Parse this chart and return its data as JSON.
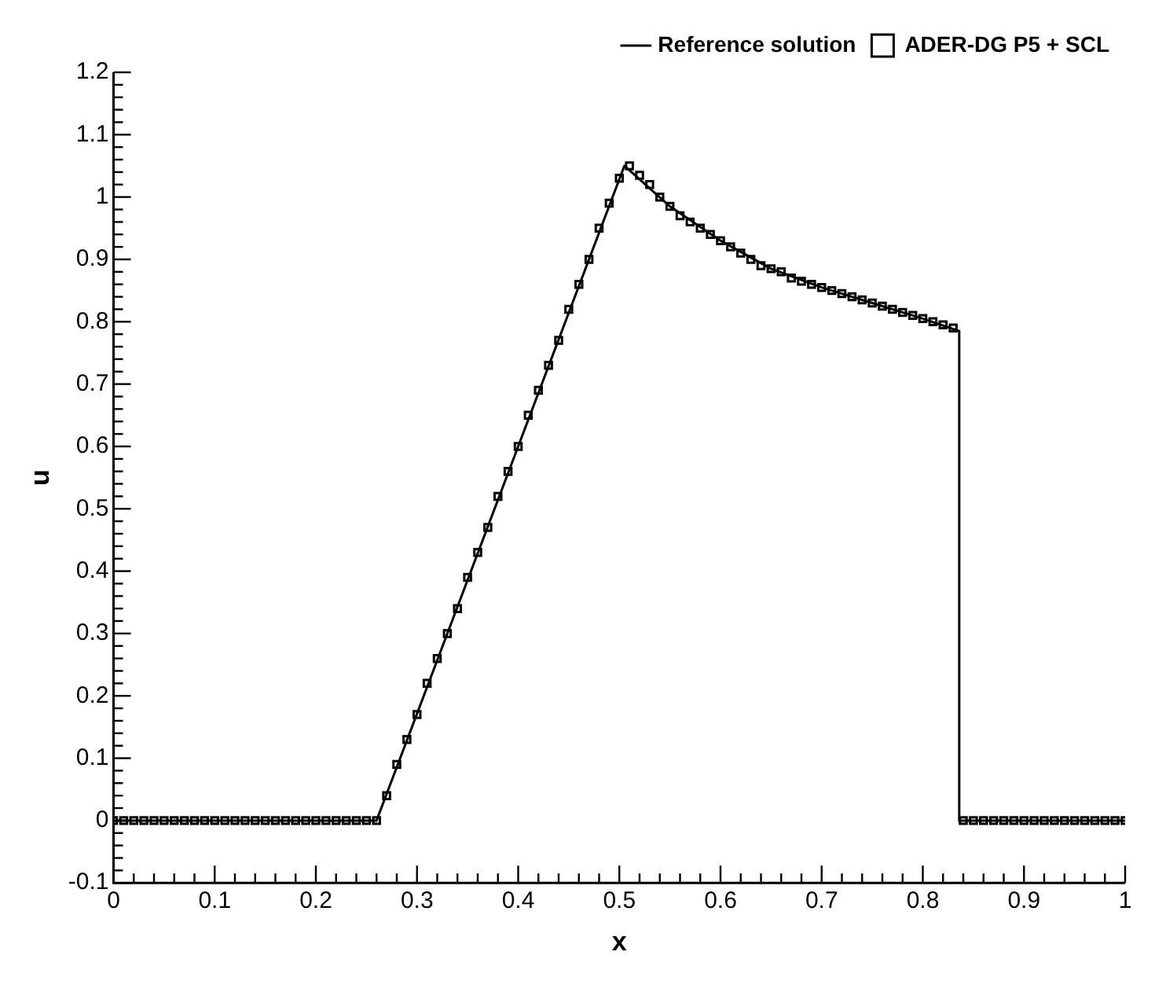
{
  "chart_data": {
    "type": "line",
    "xlabel": "x",
    "ylabel": "u",
    "xlim": [
      0,
      1
    ],
    "ylim": [
      -0.1,
      1.2
    ],
    "xticks": [
      0,
      {
        "value": 0.02,
        "label": null
      },
      {
        "value": 0.04,
        "label": null
      },
      {
        "value": 0.06,
        "label": null
      },
      {
        "value": 0.08,
        "label": null
      },
      0.1,
      {
        "value": 0.12,
        "label": null
      },
      {
        "value": 0.14,
        "label": null
      },
      {
        "value": 0.16,
        "label": null
      },
      {
        "value": 0.18,
        "label": null
      },
      0.2,
      {
        "value": 0.22,
        "label": null
      },
      {
        "value": 0.24,
        "label": null
      },
      {
        "value": 0.26,
        "label": null
      },
      {
        "value": 0.28,
        "label": null
      },
      0.3,
      {
        "value": 0.32,
        "label": null
      },
      {
        "value": 0.34,
        "label": null
      },
      {
        "value": 0.36,
        "label": null
      },
      {
        "value": 0.38,
        "label": null
      },
      0.4,
      {
        "value": 0.42,
        "label": null
      },
      {
        "value": 0.44,
        "label": null
      },
      {
        "value": 0.46,
        "label": null
      },
      {
        "value": 0.48,
        "label": null
      },
      0.5,
      {
        "value": 0.52,
        "label": null
      },
      {
        "value": 0.54,
        "label": null
      },
      {
        "value": 0.56,
        "label": null
      },
      {
        "value": 0.58,
        "label": null
      },
      0.6,
      {
        "value": 0.62,
        "label": null
      },
      {
        "value": 0.64,
        "label": null
      },
      {
        "value": 0.66,
        "label": null
      },
      {
        "value": 0.68,
        "label": null
      },
      0.7,
      {
        "value": 0.72,
        "label": null
      },
      {
        "value": 0.74,
        "label": null
      },
      {
        "value": 0.76,
        "label": null
      },
      {
        "value": 0.78,
        "label": null
      },
      0.8,
      {
        "value": 0.82,
        "label": null
      },
      {
        "value": 0.84,
        "label": null
      },
      {
        "value": 0.86,
        "label": null
      },
      {
        "value": 0.88,
        "label": null
      },
      0.9,
      {
        "value": 0.92,
        "label": null
      },
      {
        "value": 0.94,
        "label": null
      },
      {
        "value": 0.96,
        "label": null
      },
      {
        "value": 0.98,
        "label": null
      },
      1
    ],
    "yticks": [
      -0.1,
      {
        "value": -0.08,
        "label": null
      },
      {
        "value": -0.06,
        "label": null
      },
      {
        "value": -0.04,
        "label": null
      },
      {
        "value": -0.02,
        "label": null
      },
      0,
      {
        "value": 0.02,
        "label": null
      },
      {
        "value": 0.04,
        "label": null
      },
      {
        "value": 0.06,
        "label": null
      },
      {
        "value": 0.08,
        "label": null
      },
      0.1,
      {
        "value": 0.12,
        "label": null
      },
      {
        "value": 0.14,
        "label": null
      },
      {
        "value": 0.16,
        "label": null
      },
      {
        "value": 0.18,
        "label": null
      },
      0.2,
      {
        "value": 0.22,
        "label": null
      },
      {
        "value": 0.24,
        "label": null
      },
      {
        "value": 0.26,
        "label": null
      },
      {
        "value": 0.28,
        "label": null
      },
      0.3,
      {
        "value": 0.32,
        "label": null
      },
      {
        "value": 0.34,
        "label": null
      },
      {
        "value": 0.36,
        "label": null
      },
      {
        "value": 0.38,
        "label": null
      },
      0.4,
      {
        "value": 0.42,
        "label": null
      },
      {
        "value": 0.44,
        "label": null
      },
      {
        "value": 0.46,
        "label": null
      },
      {
        "value": 0.48,
        "label": null
      },
      0.5,
      {
        "value": 0.52,
        "label": null
      },
      {
        "value": 0.54,
        "label": null
      },
      {
        "value": 0.56,
        "label": null
      },
      {
        "value": 0.58,
        "label": null
      },
      0.6,
      {
        "value": 0.62,
        "label": null
      },
      {
        "value": 0.64,
        "label": null
      },
      {
        "value": 0.66,
        "label": null
      },
      {
        "value": 0.68,
        "label": null
      },
      0.7,
      {
        "value": 0.72,
        "label": null
      },
      {
        "value": 0.74,
        "label": null
      },
      {
        "value": 0.76,
        "label": null
      },
      {
        "value": 0.78,
        "label": null
      },
      0.8,
      {
        "value": 0.82,
        "label": null
      },
      {
        "value": 0.84,
        "label": null
      },
      {
        "value": 0.86,
        "label": null
      },
      {
        "value": 0.88,
        "label": null
      },
      0.9,
      {
        "value": 0.92,
        "label": null
      },
      {
        "value": 0.94,
        "label": null
      },
      {
        "value": 0.96,
        "label": null
      },
      {
        "value": 0.98,
        "label": null
      },
      1,
      {
        "value": 1.02,
        "label": null
      },
      {
        "value": 1.04,
        "label": null
      },
      {
        "value": 1.06,
        "label": null
      },
      {
        "value": 1.08,
        "label": null
      },
      1.1,
      {
        "value": 1.12,
        "label": null
      },
      {
        "value": 1.14,
        "label": null
      },
      {
        "value": 1.16,
        "label": null
      },
      {
        "value": 1.18,
        "label": null
      },
      1.2
    ],
    "grid": false,
    "legend": "top right",
    "series": [
      {
        "name": "Reference solution",
        "type": "line",
        "color": "#000000",
        "marker": "none",
        "line_style": "solid",
        "x": [
          0,
          0.26,
          0.505,
          0.55,
          0.6,
          0.65,
          0.7,
          0.75,
          0.8,
          0.836,
          0.836,
          1
        ],
        "values": [
          0,
          0,
          1.05,
          0.985,
          0.93,
          0.885,
          0.855,
          0.83,
          0.805,
          0.785,
          0,
          0
        ]
      },
      {
        "name": "ADER-DG P5 + SCL",
        "type": "scatter",
        "color": "#000000",
        "marker": "square",
        "x": [
          0,
          0.01,
          0.02,
          0.03,
          0.04,
          0.05,
          0.06,
          0.07,
          0.08,
          0.09,
          0.1,
          0.11,
          0.12,
          0.13,
          0.14,
          0.15,
          0.16,
          0.17,
          0.18,
          0.19,
          0.2,
          0.21,
          0.22,
          0.23,
          0.24,
          0.25,
          0.26,
          0.27,
          0.28,
          0.29,
          0.3,
          0.31,
          0.32,
          0.33,
          0.34,
          0.35,
          0.36,
          0.37,
          0.38,
          0.39,
          0.4,
          0.41,
          0.42,
          0.43,
          0.44,
          0.45,
          0.46,
          0.47,
          0.48,
          0.49,
          0.5,
          0.51,
          0.52,
          0.53,
          0.54,
          0.55,
          0.56,
          0.57,
          0.58,
          0.59,
          0.6,
          0.61,
          0.62,
          0.63,
          0.64,
          0.65,
          0.66,
          0.67,
          0.68,
          0.69,
          0.7,
          0.71,
          0.72,
          0.73,
          0.74,
          0.75,
          0.76,
          0.77,
          0.78,
          0.79,
          0.8,
          0.81,
          0.82,
          0.83,
          0.84,
          0.85,
          0.86,
          0.87,
          0.88,
          0.89,
          0.9,
          0.91,
          0.92,
          0.93,
          0.94,
          0.95,
          0.96,
          0.97,
          0.98,
          0.99,
          1
        ],
        "values": [
          0,
          0,
          0,
          0,
          0,
          0,
          0,
          0,
          0,
          0,
          0,
          0,
          0,
          0,
          0,
          0,
          0,
          0,
          0,
          0,
          0,
          0,
          0,
          0,
          0,
          0,
          0,
          0.04,
          0.09,
          0.13,
          0.17,
          0.22,
          0.26,
          0.3,
          0.34,
          0.39,
          0.43,
          0.47,
          0.52,
          0.56,
          0.6,
          0.65,
          0.69,
          0.73,
          0.77,
          0.82,
          0.86,
          0.9,
          0.95,
          0.99,
          1.03,
          1.05,
          1.035,
          1.02,
          1,
          0.985,
          0.97,
          0.96,
          0.95,
          0.94,
          0.93,
          0.92,
          0.91,
          0.9,
          0.89,
          0.885,
          0.88,
          0.87,
          0.865,
          0.86,
          0.855,
          0.85,
          0.845,
          0.84,
          0.835,
          0.83,
          0.825,
          0.82,
          0.815,
          0.81,
          0.805,
          0.8,
          0.795,
          0.79,
          0,
          0,
          0,
          0,
          0,
          0,
          0,
          0,
          0,
          0,
          0,
          0,
          0,
          0,
          0,
          0,
          0
        ]
      }
    ]
  }
}
